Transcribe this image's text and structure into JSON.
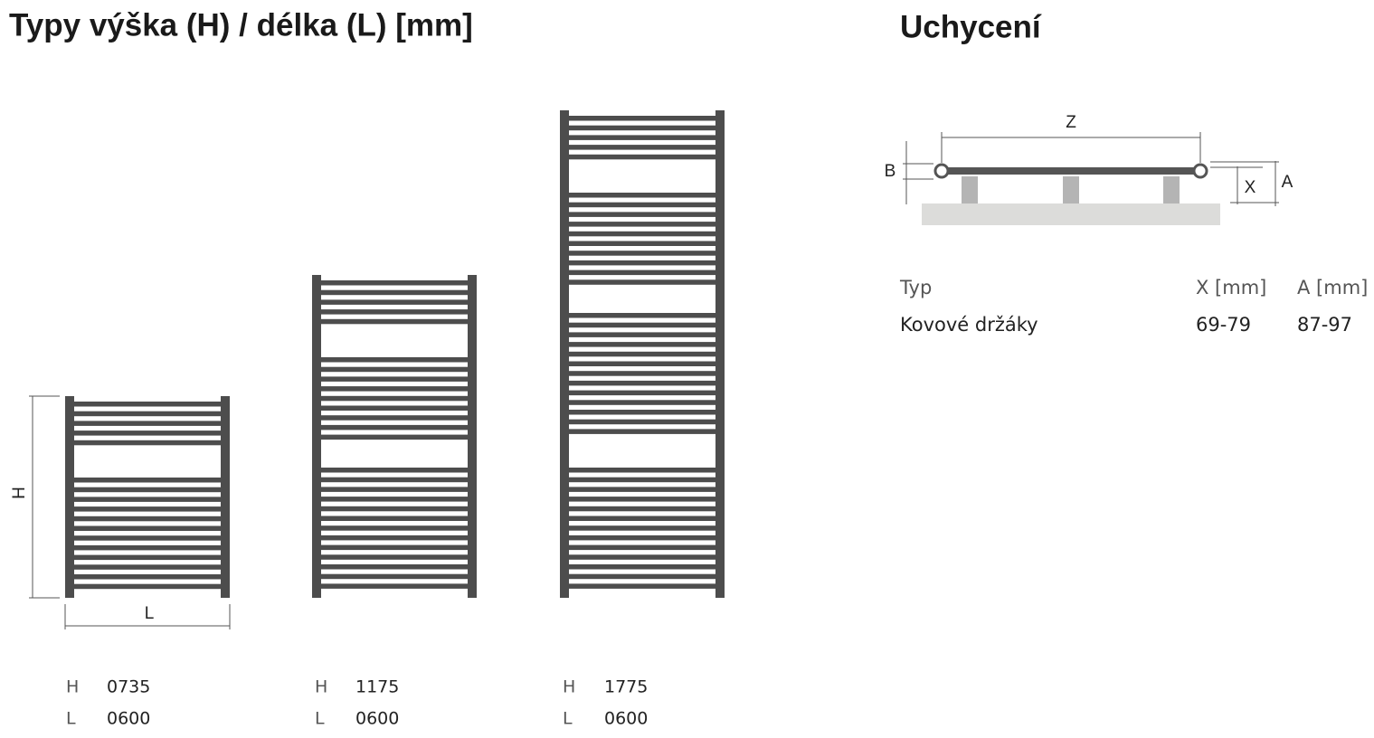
{
  "left": {
    "title": "Typy výška (H) / délka (L) [mm]",
    "dimension_labels": {
      "h": "H",
      "l": "L"
    },
    "types": [
      {
        "h_label": "H",
        "h": "0735",
        "l_label": "L",
        "l": "0600"
      },
      {
        "h_label": "H",
        "h": "1175",
        "l_label": "L",
        "l": "0600"
      },
      {
        "h_label": "H",
        "h": "1775",
        "l_label": "L",
        "l": "0600"
      }
    ]
  },
  "right": {
    "title": "Uchycení",
    "diagram_labels": {
      "z": "Z",
      "b": "B",
      "x": "X",
      "a": "A"
    },
    "table": {
      "header": [
        "Typ",
        "X [mm]",
        "A [mm]"
      ],
      "rows": [
        [
          "Kovové držáky",
          "69-79",
          "87-97"
        ]
      ]
    }
  }
}
